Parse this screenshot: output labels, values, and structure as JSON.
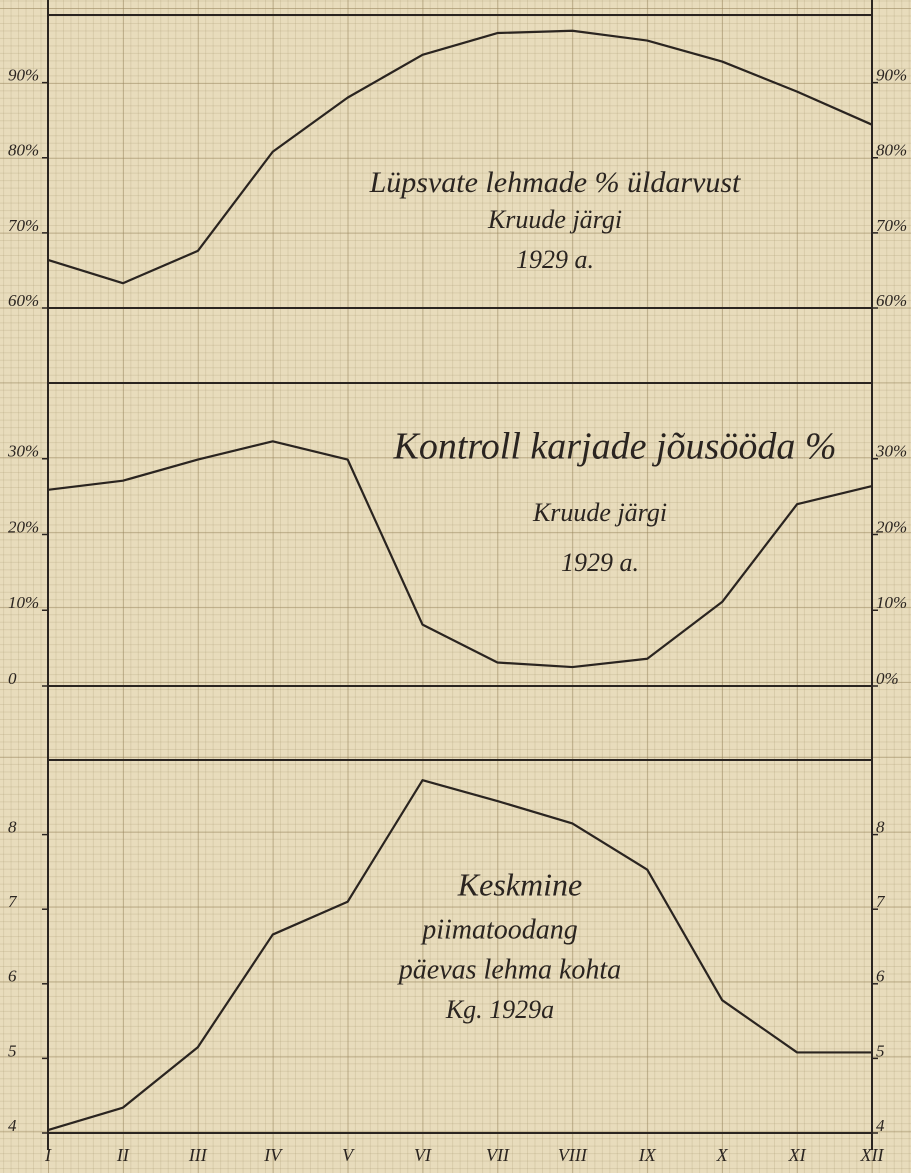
{
  "chart_data": [
    {
      "type": "line",
      "title_lines": [
        "Lüpsvate lehmade % üldarvust",
        "Kruude järgi",
        "1929 a."
      ],
      "values": [
        66.4,
        63.3,
        67.6,
        80.8,
        88,
        93.7,
        96.6,
        96.9,
        95.6,
        92.8,
        88.8,
        84.4
      ],
      "color": "#2a2420",
      "ylim": [
        60,
        99
      ],
      "yticks": [
        {
          "value": 60,
          "label": "60%"
        },
        {
          "value": 70,
          "label": "70%"
        },
        {
          "value": 80,
          "label": "80%"
        },
        {
          "value": 90,
          "label": "90%"
        }
      ]
    },
    {
      "type": "line",
      "title_lines": [
        "Kontroll karjade jõusööda %",
        "Kruude järgi",
        "1929 a."
      ],
      "values": [
        25.9,
        27.1,
        29.9,
        32.3,
        29.9,
        8.1,
        3.1,
        2.5,
        3.6,
        11.1,
        24,
        26.4
      ],
      "color": "#2a2420",
      "ylim": [
        0,
        40
      ],
      "yticks": [
        0,
        {
          "value": 10,
          "label": "10%"
        },
        {
          "value": 20,
          "label": "20%"
        },
        {
          "value": 30,
          "label": "30%"
        }
      ],
      "y2ticks": [
        {
          "value": 0,
          "label": "0%"
        },
        {
          "value": 10,
          "label": "10%"
        },
        {
          "value": 20,
          "label": "20%"
        },
        {
          "value": 30,
          "label": "30%"
        }
      ]
    },
    {
      "type": "line",
      "title_lines": [
        "Keskmine",
        "piimatoodang",
        "päevas lehma kohta",
        "Kg. 1929a"
      ],
      "categories": [
        "I",
        "II",
        "III",
        "IV",
        "V",
        "VI",
        "VII",
        "VIII",
        "IX",
        "X",
        "XI",
        "XII"
      ],
      "values": [
        4.04,
        4.34,
        5.15,
        6.66,
        7.1,
        8.73,
        8.45,
        8.15,
        7.53,
        5.78,
        5.08,
        5.08
      ],
      "color": "#2a2420",
      "ylim": [
        4,
        9
      ],
      "yticks": [
        4,
        5,
        6,
        7,
        8
      ]
    }
  ]
}
